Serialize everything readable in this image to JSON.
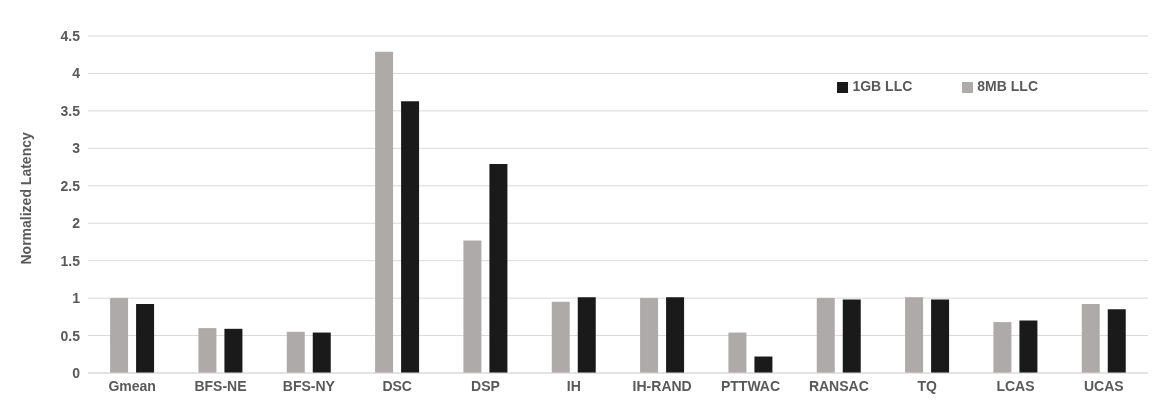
{
  "chart_data": {
    "type": "bar",
    "ylabel": "Normalized Latency",
    "categories": [
      "Gmean",
      "BFS-NE",
      "BFS-NY",
      "DSC",
      "DSP",
      "IH",
      "IH-RAND",
      "PTTWAC",
      "RANSAC",
      "TQ",
      "LCAS",
      "UCAS"
    ],
    "series": [
      {
        "name": "8MB LLC",
        "color": "#aeaaaa",
        "values": [
          1.0,
          0.6,
          0.55,
          4.29,
          1.77,
          0.95,
          1.0,
          0.54,
          1.0,
          1.01,
          0.68,
          0.92
        ]
      },
      {
        "name": "1GB LLC",
        "color": "#1a1a1a",
        "values": [
          0.92,
          0.59,
          0.54,
          3.63,
          2.79,
          1.01,
          1.01,
          0.22,
          0.98,
          0.98,
          0.7,
          0.85
        ]
      }
    ],
    "ylim": [
      0,
      4.5
    ],
    "yticks": [
      0,
      0.5,
      1,
      1.5,
      2,
      2.5,
      3,
      3.5,
      4,
      4.5
    ],
    "grid": "y",
    "legend": "top right"
  }
}
